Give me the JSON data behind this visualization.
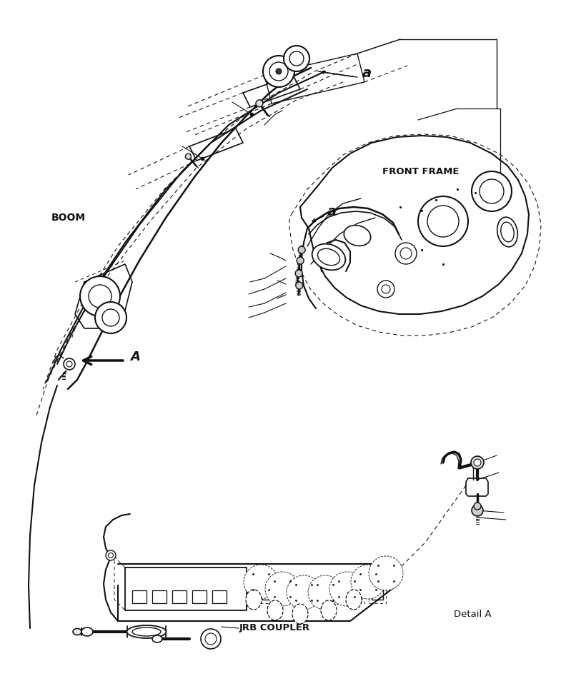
{
  "bg_color": "#ffffff",
  "lc": "#111111",
  "lc_gray": "#555555",
  "label_boom": "BOOM",
  "label_front_frame": "FRONT FRAME",
  "label_jrb_coupler": "JRB COUPLER",
  "label_detail_a": "Detail A",
  "label_a1": "a",
  "label_a2": "a",
  "label_A": "A",
  "fig_width": 7.92,
  "fig_height": 9.68,
  "dpi": 100
}
